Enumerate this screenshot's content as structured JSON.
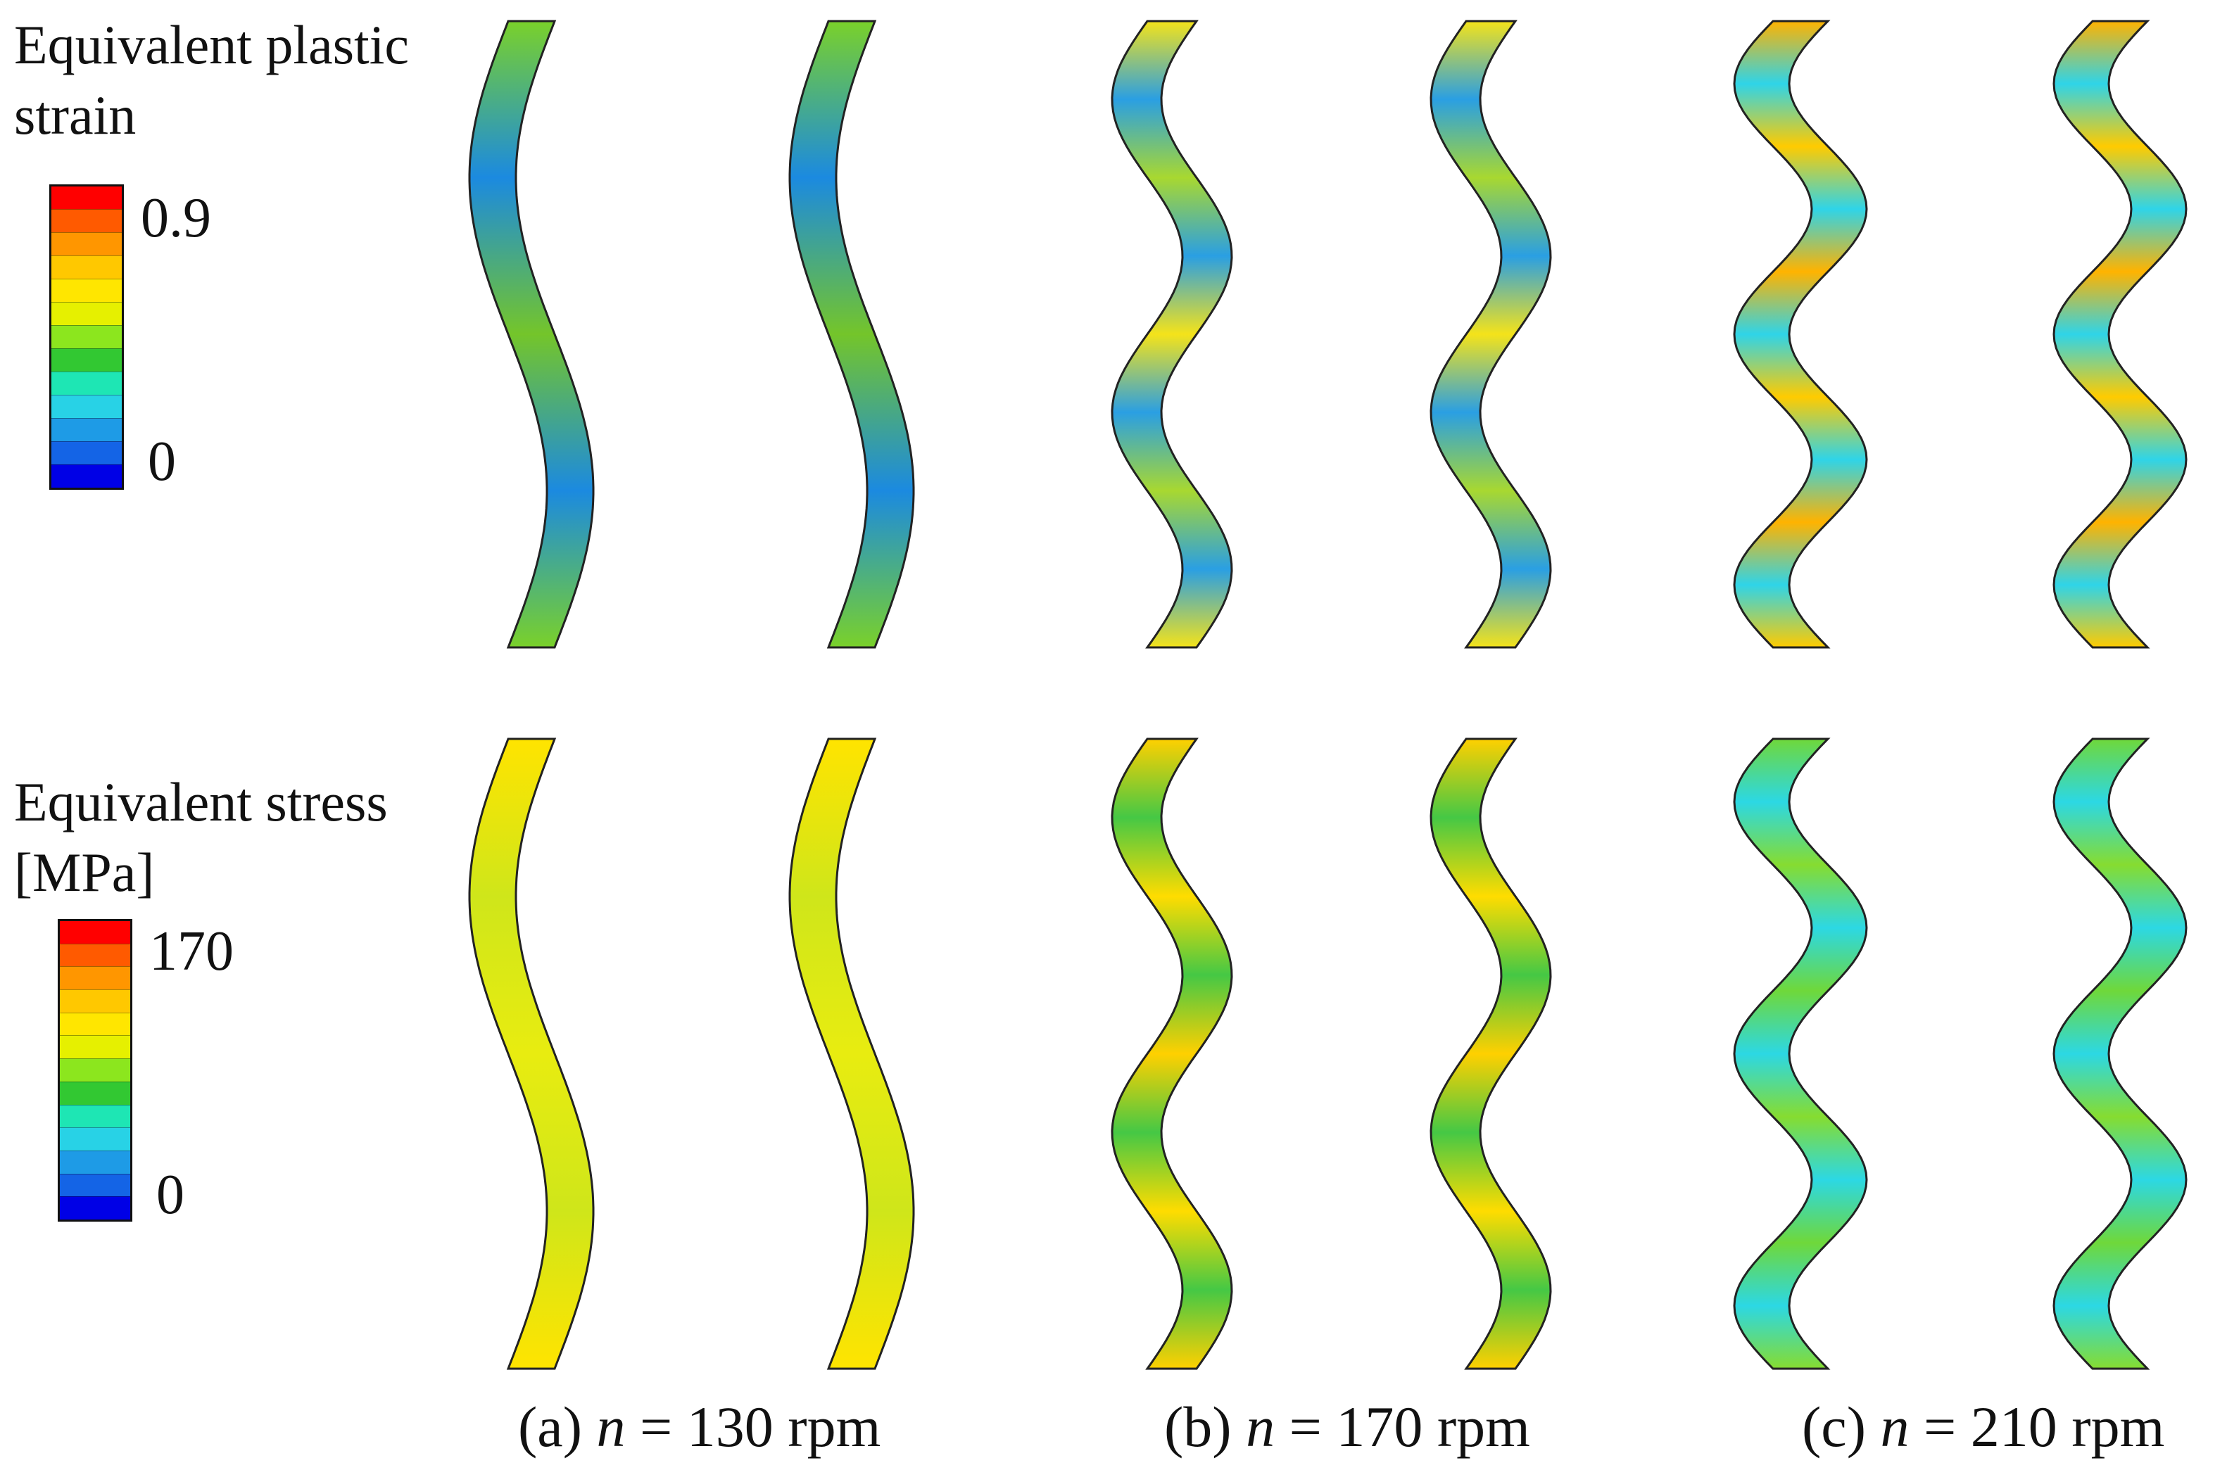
{
  "legends": {
    "strain": {
      "title_line1": "Equivalent plastic",
      "title_line2": "strain",
      "max_label": "0.9",
      "min_label": "0"
    },
    "stress": {
      "title_line1": "Equivalent stress",
      "title_line2": "[MPa]",
      "max_label": "170",
      "min_label": "0"
    },
    "colormap": [
      "#ff0000",
      "#ff5a00",
      "#ff9600",
      "#ffc800",
      "#ffe600",
      "#e6f000",
      "#8ce61e",
      "#32c832",
      "#1ee6b4",
      "#28d2e6",
      "#1e9be6",
      "#1464e6",
      "#0000e6"
    ]
  },
  "captions": [
    {
      "prefix": "(a) ",
      "var": "n",
      "suffix": " = 130 rpm"
    },
    {
      "prefix": "(b) ",
      "var": "n",
      "suffix": " = 170 rpm"
    },
    {
      "prefix": "(c) ",
      "var": "n",
      "suffix": " = 210 rpm"
    }
  ],
  "panels": [
    {
      "speed": "130 rpm",
      "strain": {
        "edge": "#7ad12a",
        "bend": "#1b8ae0",
        "crest": "#74c52a"
      },
      "stress": {
        "edge": "#ffe400",
        "bend": "#cfe61a",
        "crest": "#e8ec10"
      }
    },
    {
      "speed": "170 rpm",
      "strain": {
        "edge": "#f4e31a",
        "bend": "#2a9fe3",
        "crest": "#a8d830"
      },
      "stress": {
        "edge": "#ffd000",
        "bend": "#45c845",
        "crest": "#ffdc00"
      }
    },
    {
      "speed": "210 rpm",
      "strain": {
        "edge": "#ffb300",
        "bend": "#2fd4e8",
        "crest": "#ffcb00"
      },
      "stress": {
        "edge": "#6fd83a",
        "bend": "#2cd8e4",
        "crest": "#86dc30"
      }
    }
  ]
}
